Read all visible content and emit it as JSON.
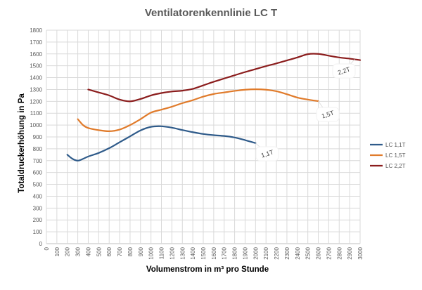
{
  "chart_data": {
    "type": "line",
    "title": "Ventilatorenkennlinie LC T",
    "xlabel": "Volumenstrom in m³ pro Stunde",
    "ylabel": "Totaldruckerhöhung in Pa",
    "xlim": [
      0,
      3000
    ],
    "ylim": [
      0,
      1800
    ],
    "x_ticks": [
      0,
      100,
      200,
      300,
      400,
      500,
      600,
      700,
      800,
      900,
      1000,
      1100,
      1200,
      1300,
      1400,
      1500,
      1600,
      1700,
      1800,
      1900,
      2000,
      2100,
      2200,
      2300,
      2400,
      2500,
      2600,
      2700,
      2800,
      2900,
      3000
    ],
    "y_ticks": [
      0,
      100,
      200,
      300,
      400,
      500,
      600,
      700,
      800,
      900,
      1000,
      1100,
      1200,
      1300,
      1400,
      1500,
      1600,
      1700,
      1800
    ],
    "grid": true,
    "legend_position": "right",
    "series": [
      {
        "name": "LC 1,1T",
        "color": "#2f5b8a",
        "callout": "1,1T",
        "points": [
          [
            200,
            750
          ],
          [
            250,
            715
          ],
          [
            300,
            700
          ],
          [
            350,
            715
          ],
          [
            400,
            735
          ],
          [
            500,
            765
          ],
          [
            600,
            805
          ],
          [
            700,
            855
          ],
          [
            800,
            905
          ],
          [
            900,
            955
          ],
          [
            1000,
            985
          ],
          [
            1100,
            990
          ],
          [
            1200,
            978
          ],
          [
            1300,
            958
          ],
          [
            1400,
            940
          ],
          [
            1500,
            925
          ],
          [
            1600,
            915
          ],
          [
            1700,
            908
          ],
          [
            1800,
            895
          ],
          [
            1900,
            873
          ],
          [
            2000,
            848
          ]
        ]
      },
      {
        "name": "LC 1,5T",
        "color": "#e07b2b",
        "callout": "1,5T",
        "points": [
          [
            300,
            1050
          ],
          [
            350,
            1000
          ],
          [
            400,
            975
          ],
          [
            500,
            957
          ],
          [
            600,
            948
          ],
          [
            700,
            962
          ],
          [
            800,
            1000
          ],
          [
            900,
            1050
          ],
          [
            1000,
            1105
          ],
          [
            1100,
            1130
          ],
          [
            1200,
            1155
          ],
          [
            1300,
            1185
          ],
          [
            1400,
            1210
          ],
          [
            1500,
            1240
          ],
          [
            1600,
            1262
          ],
          [
            1700,
            1275
          ],
          [
            1800,
            1288
          ],
          [
            1900,
            1298
          ],
          [
            2000,
            1302
          ],
          [
            2100,
            1298
          ],
          [
            2200,
            1285
          ],
          [
            2300,
            1260
          ],
          [
            2400,
            1232
          ],
          [
            2500,
            1215
          ],
          [
            2600,
            1202
          ]
        ]
      },
      {
        "name": "LC 2,2T",
        "color": "#8b1d1d",
        "callout": "2,2T",
        "points": [
          [
            400,
            1300
          ],
          [
            500,
            1275
          ],
          [
            600,
            1250
          ],
          [
            700,
            1215
          ],
          [
            800,
            1200
          ],
          [
            900,
            1220
          ],
          [
            1000,
            1250
          ],
          [
            1100,
            1270
          ],
          [
            1200,
            1283
          ],
          [
            1300,
            1290
          ],
          [
            1400,
            1305
          ],
          [
            1500,
            1335
          ],
          [
            1600,
            1365
          ],
          [
            1700,
            1393
          ],
          [
            1800,
            1420
          ],
          [
            1900,
            1447
          ],
          [
            2000,
            1472
          ],
          [
            2100,
            1497
          ],
          [
            2200,
            1520
          ],
          [
            2300,
            1545
          ],
          [
            2400,
            1570
          ],
          [
            2500,
            1598
          ],
          [
            2600,
            1600
          ],
          [
            2700,
            1585
          ],
          [
            2800,
            1570
          ],
          [
            2900,
            1560
          ],
          [
            3000,
            1548
          ]
        ]
      }
    ]
  }
}
